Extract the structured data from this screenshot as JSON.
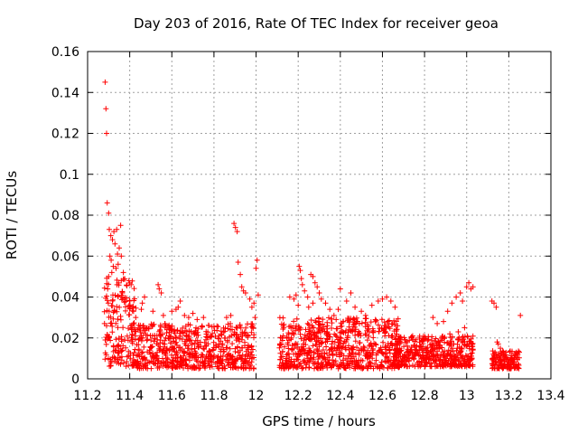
{
  "chart_data": {
    "type": "scatter",
    "title": "Day 203 of 2016, Rate Of TEC Index for receiver geoa",
    "xlabel": "GPS time / hours",
    "ylabel": "ROTI / TECUs",
    "xlim": [
      11.2,
      13.4
    ],
    "ylim": [
      0,
      0.16
    ],
    "x_ticks": [
      11.2,
      11.4,
      11.6,
      11.8,
      12,
      12.2,
      12.4,
      12.6,
      12.8,
      13,
      13.2,
      13.4
    ],
    "x_tick_labels": [
      "11.2",
      "11.4",
      "11.6",
      "11.8",
      "12",
      "12.2",
      "12.4",
      "12.6",
      "12.8",
      "13",
      "13.2",
      "13.4"
    ],
    "y_ticks": [
      0,
      0.02,
      0.04,
      0.06,
      0.08,
      0.1,
      0.12,
      0.14,
      0.16
    ],
    "y_tick_labels": [
      "0",
      "0.02",
      "0.04",
      "0.06",
      "0.08",
      "0.1",
      "0.12",
      "0.14",
      "0.16"
    ],
    "grid": true,
    "marker": "+",
    "color": "#ff0000",
    "segments": [
      {
        "x0": 11.28,
        "x1": 11.43,
        "ymin": 0.006,
        "ymax": 0.05,
        "n": 160
      },
      {
        "x0": 11.41,
        "x1": 11.99,
        "ymin": 0.005,
        "ymax": 0.027,
        "n": 650
      },
      {
        "x0": 12.11,
        "x1": 12.68,
        "ymin": 0.005,
        "ymax": 0.03,
        "n": 700
      },
      {
        "x0": 12.66,
        "x1": 13.03,
        "ymin": 0.006,
        "ymax": 0.021,
        "n": 450
      },
      {
        "x0": 13.12,
        "x1": 13.25,
        "ymin": 0.005,
        "ymax": 0.014,
        "n": 140
      }
    ],
    "points": [
      [
        11.283,
        0.145
      ],
      [
        11.287,
        0.132
      ],
      [
        11.29,
        0.12
      ],
      [
        11.293,
        0.086
      ],
      [
        11.3,
        0.081
      ],
      [
        11.303,
        0.073
      ],
      [
        11.31,
        0.07
      ],
      [
        11.318,
        0.068
      ],
      [
        11.325,
        0.072
      ],
      [
        11.33,
        0.066
      ],
      [
        11.338,
        0.073
      ],
      [
        11.342,
        0.061
      ],
      [
        11.35,
        0.064
      ],
      [
        11.357,
        0.075
      ],
      [
        11.36,
        0.06
      ],
      [
        11.306,
        0.06
      ],
      [
        11.312,
        0.058
      ],
      [
        11.322,
        0.055
      ],
      [
        11.3,
        0.05
      ],
      [
        11.315,
        0.052
      ],
      [
        11.335,
        0.054
      ],
      [
        11.345,
        0.056
      ],
      [
        11.28,
        0.027
      ],
      [
        11.285,
        0.019
      ],
      [
        11.29,
        0.026
      ],
      [
        11.295,
        0.044
      ],
      [
        11.298,
        0.037
      ],
      [
        11.302,
        0.033
      ],
      [
        11.32,
        0.041
      ],
      [
        11.34,
        0.046
      ],
      [
        11.36,
        0.048
      ],
      [
        11.365,
        0.042
      ],
      [
        11.37,
        0.052
      ],
      [
        11.895,
        0.076
      ],
      [
        11.902,
        0.074
      ],
      [
        11.91,
        0.072
      ],
      [
        11.915,
        0.057
      ],
      [
        11.925,
        0.051
      ],
      [
        11.932,
        0.045
      ],
      [
        11.94,
        0.043
      ],
      [
        11.95,
        0.042
      ],
      [
        11.97,
        0.039
      ],
      [
        11.98,
        0.035
      ],
      [
        11.99,
        0.037
      ],
      [
        12.0,
        0.054
      ],
      [
        12.005,
        0.058
      ],
      [
        12.01,
        0.041
      ],
      [
        11.995,
        0.03
      ],
      [
        11.64,
        0.038
      ],
      [
        11.63,
        0.035
      ],
      [
        11.535,
        0.046
      ],
      [
        11.54,
        0.044
      ],
      [
        11.55,
        0.042
      ],
      [
        11.47,
        0.04
      ],
      [
        11.46,
        0.037
      ],
      [
        11.455,
        0.034
      ],
      [
        11.51,
        0.033
      ],
      [
        11.56,
        0.031
      ],
      [
        11.6,
        0.033
      ],
      [
        11.62,
        0.034
      ],
      [
        11.66,
        0.031
      ],
      [
        11.68,
        0.03
      ],
      [
        11.7,
        0.032
      ],
      [
        11.72,
        0.029
      ],
      [
        11.75,
        0.03
      ],
      [
        11.86,
        0.03
      ],
      [
        11.88,
        0.031
      ],
      [
        12.16,
        0.04
      ],
      [
        12.18,
        0.039
      ],
      [
        12.19,
        0.041
      ],
      [
        12.205,
        0.055
      ],
      [
        12.21,
        0.053
      ],
      [
        12.215,
        0.049
      ],
      [
        12.22,
        0.046
      ],
      [
        12.23,
        0.043
      ],
      [
        12.245,
        0.04
      ],
      [
        12.26,
        0.051
      ],
      [
        12.27,
        0.05
      ],
      [
        12.28,
        0.047
      ],
      [
        12.29,
        0.045
      ],
      [
        12.3,
        0.042
      ],
      [
        12.27,
        0.037
      ],
      [
        12.25,
        0.035
      ],
      [
        12.2,
        0.036
      ],
      [
        12.31,
        0.039
      ],
      [
        12.33,
        0.037
      ],
      [
        12.35,
        0.034
      ],
      [
        12.37,
        0.031
      ],
      [
        12.39,
        0.034
      ],
      [
        12.4,
        0.044
      ],
      [
        12.43,
        0.038
      ],
      [
        12.45,
        0.042
      ],
      [
        12.47,
        0.035
      ],
      [
        12.5,
        0.033
      ],
      [
        12.52,
        0.031
      ],
      [
        12.55,
        0.036
      ],
      [
        12.58,
        0.038
      ],
      [
        12.6,
        0.039
      ],
      [
        12.62,
        0.04
      ],
      [
        12.64,
        0.038
      ],
      [
        12.66,
        0.035
      ],
      [
        12.84,
        0.03
      ],
      [
        12.86,
        0.027
      ],
      [
        12.89,
        0.028
      ],
      [
        12.91,
        0.033
      ],
      [
        12.93,
        0.037
      ],
      [
        12.95,
        0.04
      ],
      [
        12.97,
        0.042
      ],
      [
        12.98,
        0.038
      ],
      [
        13.0,
        0.045
      ],
      [
        13.01,
        0.047
      ],
      [
        13.02,
        0.044
      ],
      [
        13.03,
        0.045
      ],
      [
        12.96,
        0.023
      ],
      [
        12.99,
        0.025
      ],
      [
        12.92,
        0.022
      ],
      [
        13.12,
        0.038
      ],
      [
        13.13,
        0.037
      ],
      [
        13.14,
        0.035
      ],
      [
        13.145,
        0.018
      ],
      [
        13.15,
        0.017
      ],
      [
        13.16,
        0.015
      ],
      [
        13.255,
        0.031
      ],
      [
        13.25,
        0.013
      ],
      [
        13.24,
        0.012
      ]
    ]
  }
}
